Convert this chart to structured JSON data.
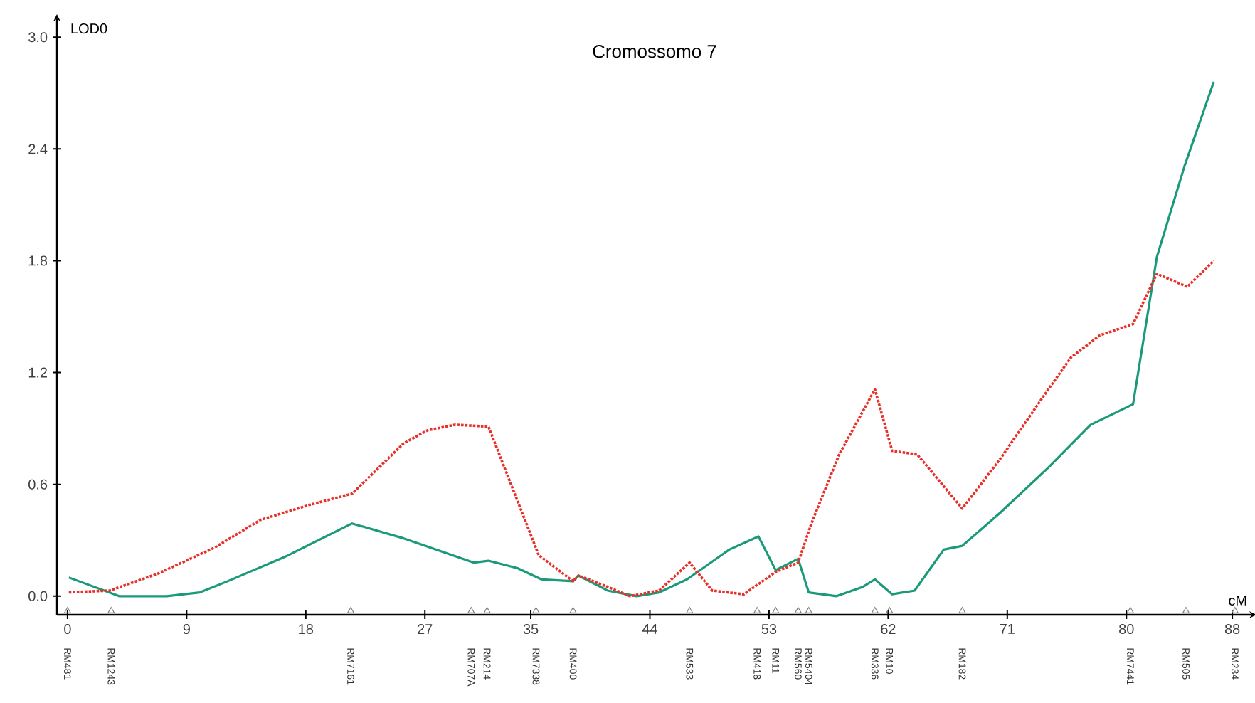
{
  "chart_data": {
    "type": "line",
    "title": "Cromossomo 7",
    "xlabel": "cM",
    "ylabel": "LOD0",
    "xlim": [
      -0.8,
      89.5
    ],
    "ylim": [
      -0.1,
      3.1
    ],
    "xticks": [
      0,
      9,
      18,
      27,
      35,
      44,
      53,
      62,
      71,
      80,
      88
    ],
    "yticks": [
      {
        "value": 0,
        "label": "0.0"
      },
      {
        "value": 0.6,
        "label": "0.6"
      },
      {
        "value": 1.2,
        "label": "1.2"
      },
      {
        "value": 1.8,
        "label": "1.8"
      },
      {
        "value": 2.4,
        "label": "2.4"
      },
      {
        "value": 3.0,
        "label": "3.0"
      }
    ],
    "grid": false,
    "marker": "none",
    "series": [
      {
        "color": "#1a9a7a",
        "line_style": "solid",
        "x": [
          0.1,
          3.9,
          7.5,
          10,
          12.1,
          16.4,
          21.5,
          25.4,
          30.7,
          31.8,
          34,
          35.8,
          38.2,
          38.6,
          40.8,
          43,
          44.7,
          46.8,
          50,
          52.2,
          53.5,
          55.2,
          56,
          58.1,
          60.1,
          61,
          62.3,
          64,
          66.2,
          67.6,
          70.5,
          74.1,
          77.3,
          80.5,
          82.3,
          84.4,
          86.6
        ],
        "values": [
          0.1,
          0.0,
          0.0,
          0.02,
          0.08,
          0.21,
          0.39,
          0.31,
          0.18,
          0.19,
          0.15,
          0.09,
          0.08,
          0.11,
          0.03,
          0.0,
          0.02,
          0.09,
          0.25,
          0.32,
          0.14,
          0.2,
          0.02,
          0.0,
          0.05,
          0.09,
          0.01,
          0.03,
          0.25,
          0.27,
          0.45,
          0.69,
          0.92,
          1.03,
          1.82,
          2.31,
          2.76
        ]
      },
      {
        "color": "#e8302a",
        "line_style": "dotted",
        "x": [
          0.1,
          3.2,
          6.8,
          11.1,
          14.6,
          18.3,
          21.5,
          25.4,
          27.2,
          29.3,
          31.8,
          35.6,
          38.2,
          38.6,
          40.8,
          42.5,
          44.7,
          47,
          48.7,
          51.1,
          53.5,
          55.2,
          56.2,
          58.3,
          61,
          62.3,
          64.2,
          67.6,
          70.5,
          74.1,
          75.8,
          78,
          80.5,
          82.3,
          84.6,
          86.6
        ],
        "values": [
          0.02,
          0.03,
          0.12,
          0.26,
          0.41,
          0.49,
          0.55,
          0.82,
          0.89,
          0.92,
          0.91,
          0.22,
          0.08,
          0.11,
          0.05,
          0.0,
          0.03,
          0.18,
          0.03,
          0.01,
          0.13,
          0.18,
          0.39,
          0.76,
          1.11,
          0.78,
          0.76,
          0.47,
          0.74,
          1.11,
          1.28,
          1.4,
          1.46,
          1.73,
          1.66,
          1.8
        ]
      },
      {
        "type": "scatter",
        "marker": "triangle",
        "color": "#808080",
        "x": [
          0,
          3.3,
          21.4,
          30.5,
          31.7,
          35.4,
          38.2,
          47.0,
          52.1,
          53.5,
          55.2,
          56.0,
          61.0,
          62.1,
          67.6,
          80.3,
          84.5,
          88.2
        ],
        "values": [
          -0.08,
          -0.08,
          -0.08,
          -0.08,
          -0.08,
          -0.08,
          -0.08,
          -0.08,
          -0.08,
          -0.08,
          -0.08,
          -0.08,
          -0.08,
          -0.08,
          -0.08,
          -0.08,
          -0.08,
          -0.08
        ]
      }
    ],
    "annotations": [
      "RM481",
      "RM1243",
      "RM7161",
      "RM707A",
      "RM214",
      "RM7338",
      "RM400",
      "RM533",
      "RM418",
      "RM11",
      "RM560",
      "RM5404",
      "RM336",
      "RM10",
      "RM182",
      "RM7441",
      "RM505",
      "RM234"
    ],
    "tick_labels": true
  }
}
